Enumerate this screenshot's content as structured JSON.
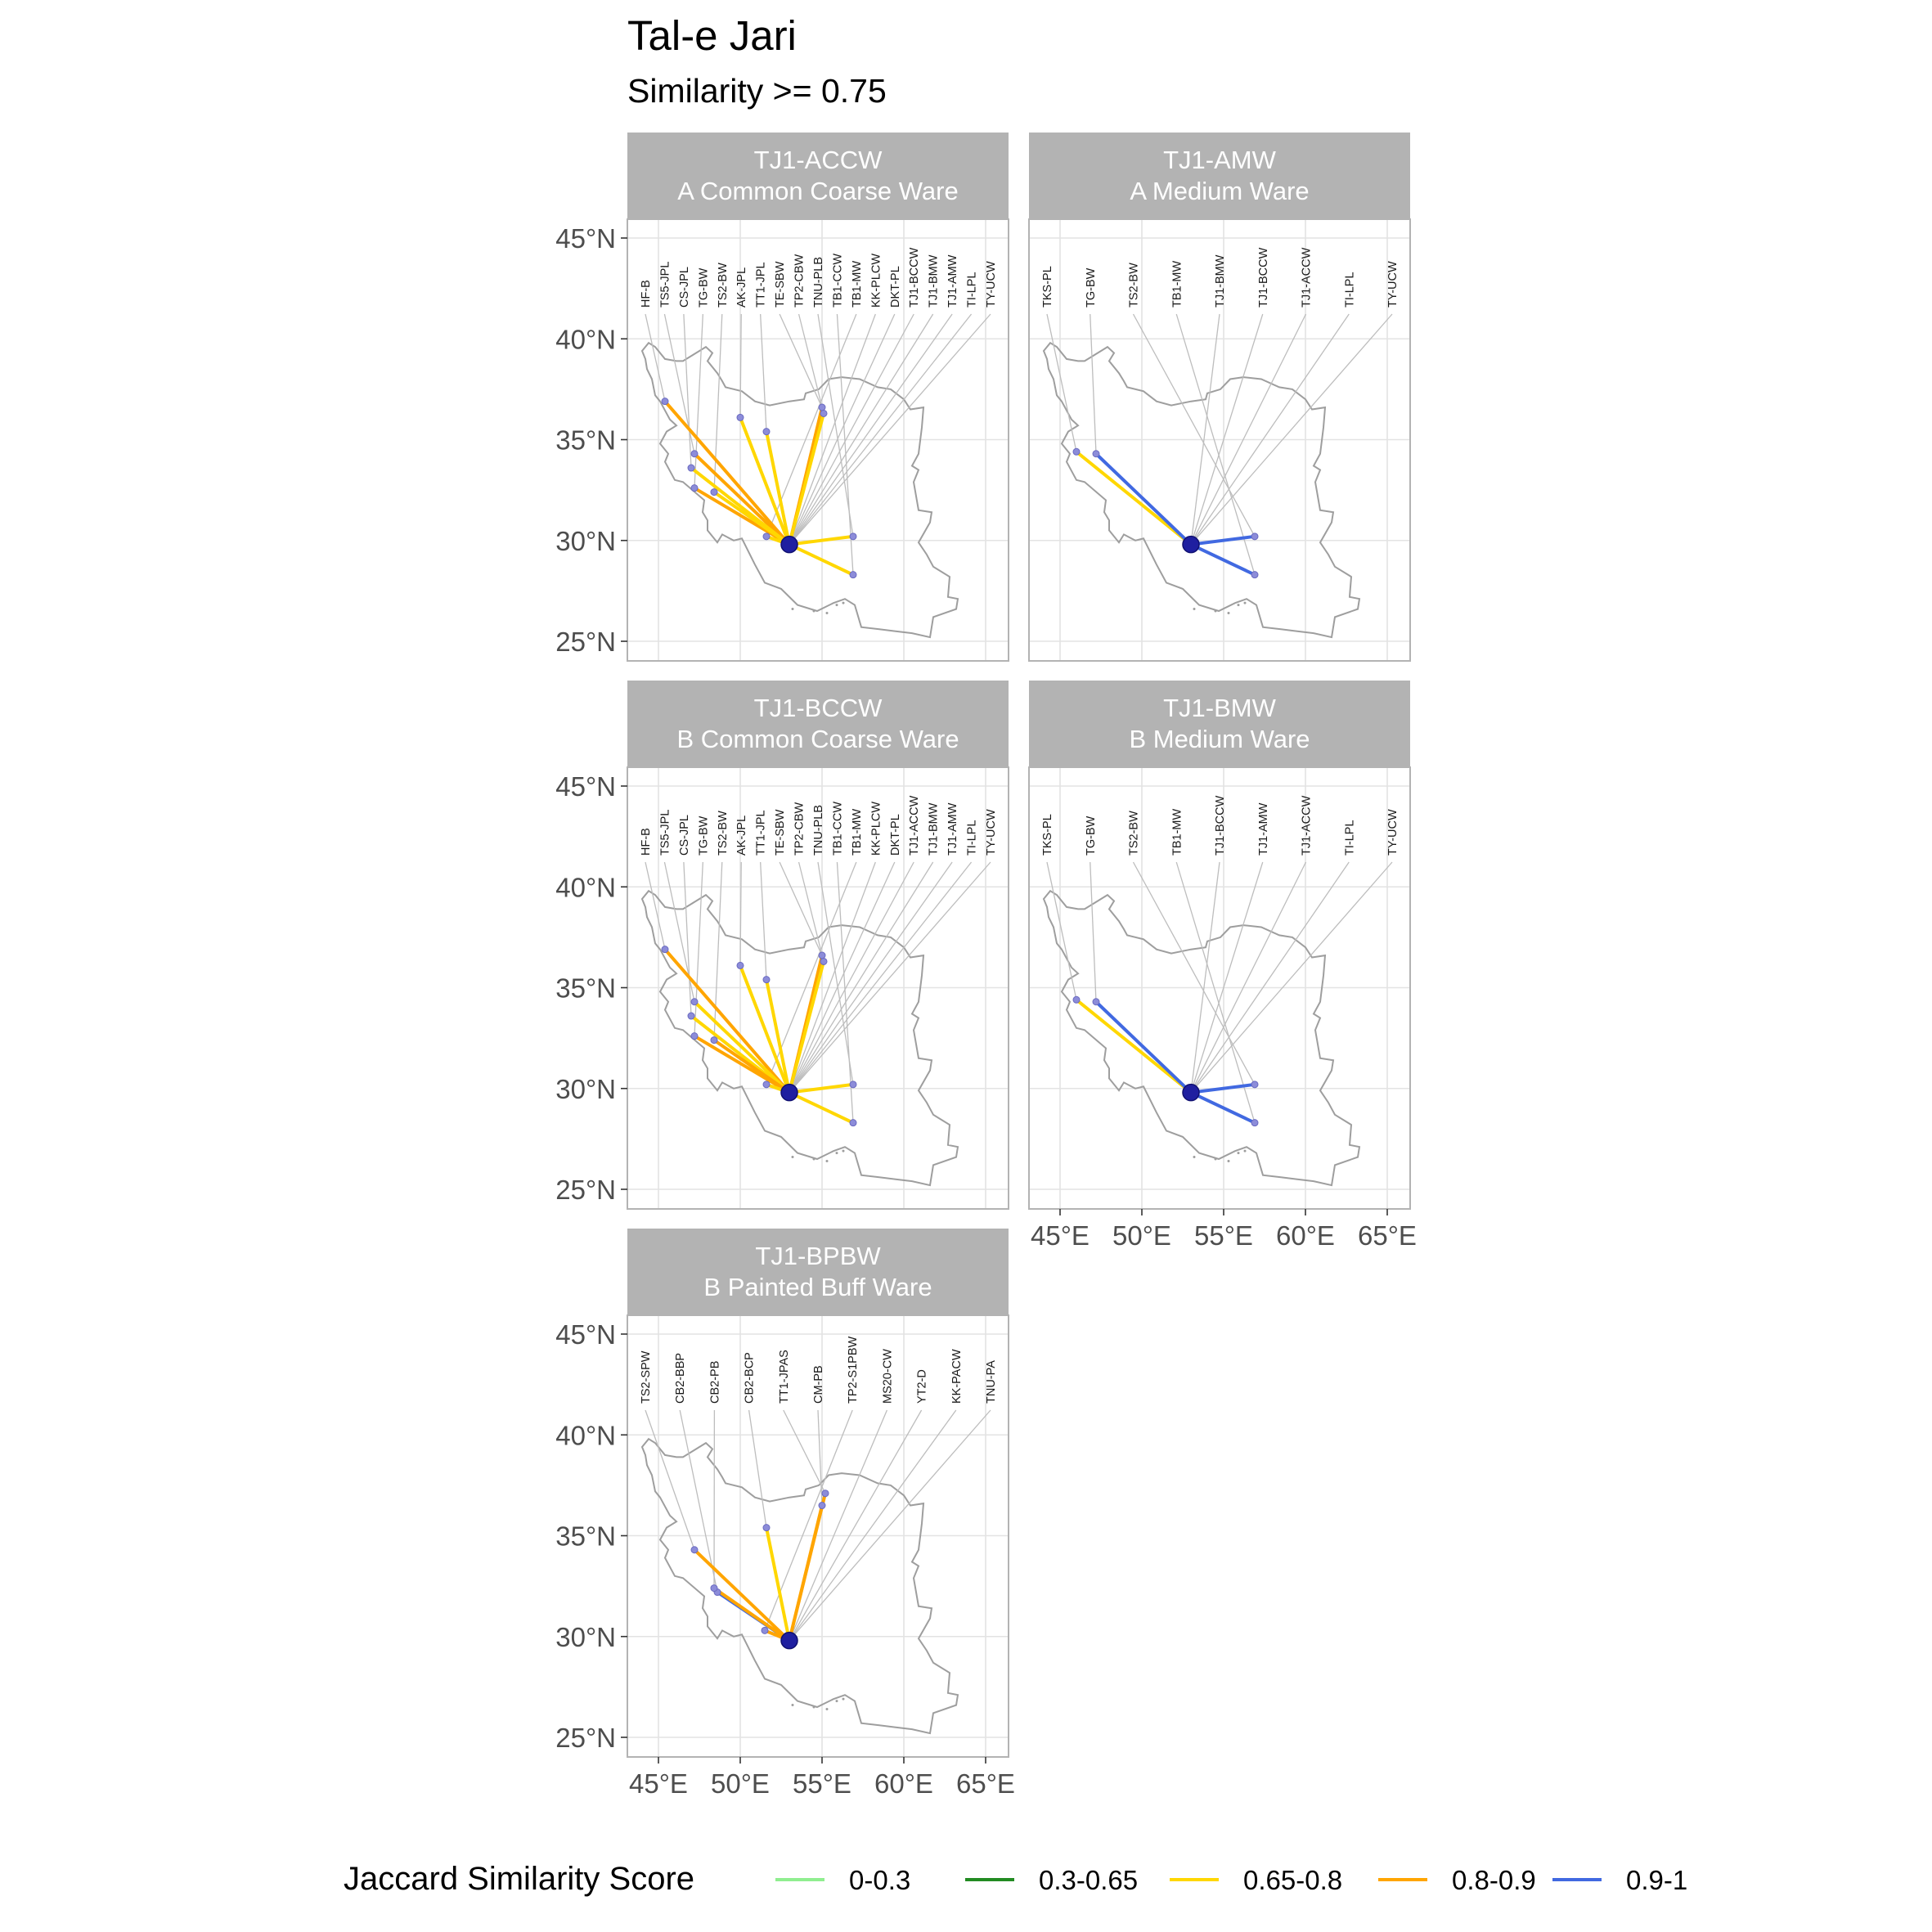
{
  "title": "Tal-e Jari",
  "subtitle": "Similarity >= 0.75",
  "chart_data": {
    "type": "map",
    "region": "Iran",
    "x_ticks": [
      "45°E",
      "50°E",
      "55°E",
      "60°E",
      "65°E"
    ],
    "y_ticks": [
      "45°N",
      "40°N",
      "35°N",
      "30°N",
      "25°N"
    ],
    "origin": {
      "lon": 53.0,
      "lat": 29.8
    },
    "legend": {
      "title": "Jaccard Similarity Score",
      "items": [
        {
          "label": "0-0.3",
          "color": "#90EE90"
        },
        {
          "label": "0.3-0.65",
          "color": "#228B22"
        },
        {
          "label": "0.65-0.8",
          "color": "#FFD700"
        },
        {
          "label": "0.8-0.9",
          "color": "#FFA500"
        },
        {
          "label": "0.9-1",
          "color": "#4169E1"
        }
      ]
    },
    "panels": [
      {
        "id": "TJ1-ACCW",
        "name": "A Common Coarse Ware",
        "labels": [
          "HF-B",
          "TS5-JPL",
          "CS-JPL",
          "TG-BW",
          "TS2-BW",
          "AK-JPL",
          "TT1-JPL",
          "TE-SBW",
          "TP2-CBW",
          "TNU-PLB",
          "TB1-CCW",
          "TB1-MW",
          "KK-PLCW",
          "DKT-PL",
          "TJ1-BCCW",
          "TJ1-BMW",
          "TJ1-AMW",
          "TI-LPL",
          "TY-UCW"
        ],
        "links": [
          {
            "lon": 45.4,
            "lat": 36.9,
            "c": 3
          },
          {
            "lon": 47.2,
            "lat": 34.3,
            "c": 3
          },
          {
            "lon": 47.0,
            "lat": 33.6,
            "c": 2
          },
          {
            "lon": 47.2,
            "lat": 32.6,
            "c": 3
          },
          {
            "lon": 48.4,
            "lat": 32.4,
            "c": 2
          },
          {
            "lon": 50.0,
            "lat": 36.1,
            "c": 2
          },
          {
            "lon": 51.6,
            "lat": 35.4,
            "c": 2
          },
          {
            "lon": 55.0,
            "lat": 36.6,
            "c": 3
          },
          {
            "lon": 55.1,
            "lat": 36.3,
            "c": 2
          },
          {
            "lon": 56.9,
            "lat": 30.2,
            "c": 2
          },
          {
            "lon": 56.9,
            "lat": 28.3,
            "c": 2
          },
          {
            "lon": 51.6,
            "lat": 30.2,
            "c": 2
          }
        ],
        "dots": [
          {
            "lon": 45.4,
            "lat": 36.9
          },
          {
            "lon": 47.2,
            "lat": 34.3
          },
          {
            "lon": 47.0,
            "lat": 33.6
          },
          {
            "lon": 47.2,
            "lat": 32.6
          },
          {
            "lon": 48.4,
            "lat": 32.4
          },
          {
            "lon": 50.0,
            "lat": 36.1
          },
          {
            "lon": 51.6,
            "lat": 35.4
          },
          {
            "lon": 55.0,
            "lat": 36.6
          },
          {
            "lon": 55.1,
            "lat": 36.3
          },
          {
            "lon": 56.9,
            "lat": 30.2
          },
          {
            "lon": 56.9,
            "lat": 28.3
          },
          {
            "lon": 51.6,
            "lat": 30.2
          }
        ]
      },
      {
        "id": "TJ1-AMW",
        "name": "A Medium Ware",
        "labels": [
          "TKS-PL",
          "TG-BW",
          "TS2-BW",
          "TB1-MW",
          "TJ1-BMW",
          "TJ1-BCCW",
          "TJ1-ACCW",
          "TI-LPL",
          "TY-UCW"
        ],
        "links": [
          {
            "lon": 46.0,
            "lat": 34.4,
            "c": 2
          },
          {
            "lon": 47.2,
            "lat": 34.3,
            "c": 4
          },
          {
            "lon": 56.9,
            "lat": 30.2,
            "c": 4
          },
          {
            "lon": 56.9,
            "lat": 28.3,
            "c": 4
          }
        ],
        "dots": [
          {
            "lon": 46.0,
            "lat": 34.4
          },
          {
            "lon": 47.2,
            "lat": 34.3
          },
          {
            "lon": 56.9,
            "lat": 30.2
          },
          {
            "lon": 56.9,
            "lat": 28.3
          }
        ]
      },
      {
        "id": "TJ1-BCCW",
        "name": "B Common Coarse Ware",
        "labels": [
          "HF-B",
          "TS5-JPL",
          "CS-JPL",
          "TG-BW",
          "TS2-BW",
          "AK-JPL",
          "TT1-JPL",
          "TE-SBW",
          "TP2-CBW",
          "TNU-PLB",
          "TB1-CCW",
          "TB1-MW",
          "KK-PLCW",
          "DKT-PL",
          "TJ1-ACCW",
          "TJ1-BMW",
          "TJ1-AMW",
          "TI-LPL",
          "TY-UCW"
        ],
        "links": [
          {
            "lon": 45.4,
            "lat": 36.9,
            "c": 3
          },
          {
            "lon": 47.2,
            "lat": 34.3,
            "c": 2
          },
          {
            "lon": 47.0,
            "lat": 33.6,
            "c": 2
          },
          {
            "lon": 47.2,
            "lat": 32.6,
            "c": 3
          },
          {
            "lon": 48.4,
            "lat": 32.4,
            "c": 3
          },
          {
            "lon": 50.0,
            "lat": 36.1,
            "c": 2
          },
          {
            "lon": 51.6,
            "lat": 35.4,
            "c": 2
          },
          {
            "lon": 55.0,
            "lat": 36.6,
            "c": 3
          },
          {
            "lon": 55.1,
            "lat": 36.3,
            "c": 2
          },
          {
            "lon": 56.9,
            "lat": 30.2,
            "c": 2
          },
          {
            "lon": 56.9,
            "lat": 28.3,
            "c": 2
          },
          {
            "lon": 51.6,
            "lat": 30.2,
            "c": 2
          }
        ],
        "dots": [
          {
            "lon": 45.4,
            "lat": 36.9
          },
          {
            "lon": 47.2,
            "lat": 34.3
          },
          {
            "lon": 47.0,
            "lat": 33.6
          },
          {
            "lon": 47.2,
            "lat": 32.6
          },
          {
            "lon": 48.4,
            "lat": 32.4
          },
          {
            "lon": 50.0,
            "lat": 36.1
          },
          {
            "lon": 51.6,
            "lat": 35.4
          },
          {
            "lon": 55.0,
            "lat": 36.6
          },
          {
            "lon": 55.1,
            "lat": 36.3
          },
          {
            "lon": 56.9,
            "lat": 30.2
          },
          {
            "lon": 56.9,
            "lat": 28.3
          },
          {
            "lon": 51.6,
            "lat": 30.2
          }
        ]
      },
      {
        "id": "TJ1-BMW",
        "name": "B Medium Ware",
        "labels": [
          "TKS-PL",
          "TG-BW",
          "TS2-BW",
          "TB1-MW",
          "TJ1-BCCW",
          "TJ1-AMW",
          "TJ1-ACCW",
          "TI-LPL",
          "TY-UCW"
        ],
        "links": [
          {
            "lon": 46.0,
            "lat": 34.4,
            "c": 2
          },
          {
            "lon": 47.2,
            "lat": 34.3,
            "c": 4
          },
          {
            "lon": 56.9,
            "lat": 30.2,
            "c": 4
          },
          {
            "lon": 56.9,
            "lat": 28.3,
            "c": 4
          }
        ],
        "dots": [
          {
            "lon": 46.0,
            "lat": 34.4
          },
          {
            "lon": 47.2,
            "lat": 34.3
          },
          {
            "lon": 56.9,
            "lat": 30.2
          },
          {
            "lon": 56.9,
            "lat": 28.3
          }
        ]
      },
      {
        "id": "TJ1-BPBW",
        "name": "B Painted Buff Ware",
        "labels": [
          "TS2-SPW",
          "CB2-BBP",
          "CB2-PB",
          "CB2-BCP",
          "TT1-JPAS",
          "CM-PB",
          "TP2-S1PBW",
          "MS20-CW",
          "YT2-D",
          "KK-PACW",
          "TNU-PA"
        ],
        "links": [
          {
            "lon": 47.2,
            "lat": 34.3,
            "c": 3
          },
          {
            "lon": 48.6,
            "lat": 32.2,
            "c": 4
          },
          {
            "lon": 48.4,
            "lat": 32.4,
            "c": 3
          },
          {
            "lon": 51.6,
            "lat": 35.4,
            "c": 2
          },
          {
            "lon": 55.2,
            "lat": 37.1,
            "c": 3
          },
          {
            "lon": 55.0,
            "lat": 36.5,
            "c": 3
          },
          {
            "lon": 51.5,
            "lat": 30.3,
            "c": 3
          }
        ],
        "dots": [
          {
            "lon": 47.2,
            "lat": 34.3
          },
          {
            "lon": 48.6,
            "lat": 32.2
          },
          {
            "lon": 48.4,
            "lat": 32.4
          },
          {
            "lon": 51.6,
            "lat": 35.4
          },
          {
            "lon": 55.2,
            "lat": 37.1
          },
          {
            "lon": 55.0,
            "lat": 36.5
          },
          {
            "lon": 51.5,
            "lat": 30.3
          }
        ]
      }
    ]
  }
}
